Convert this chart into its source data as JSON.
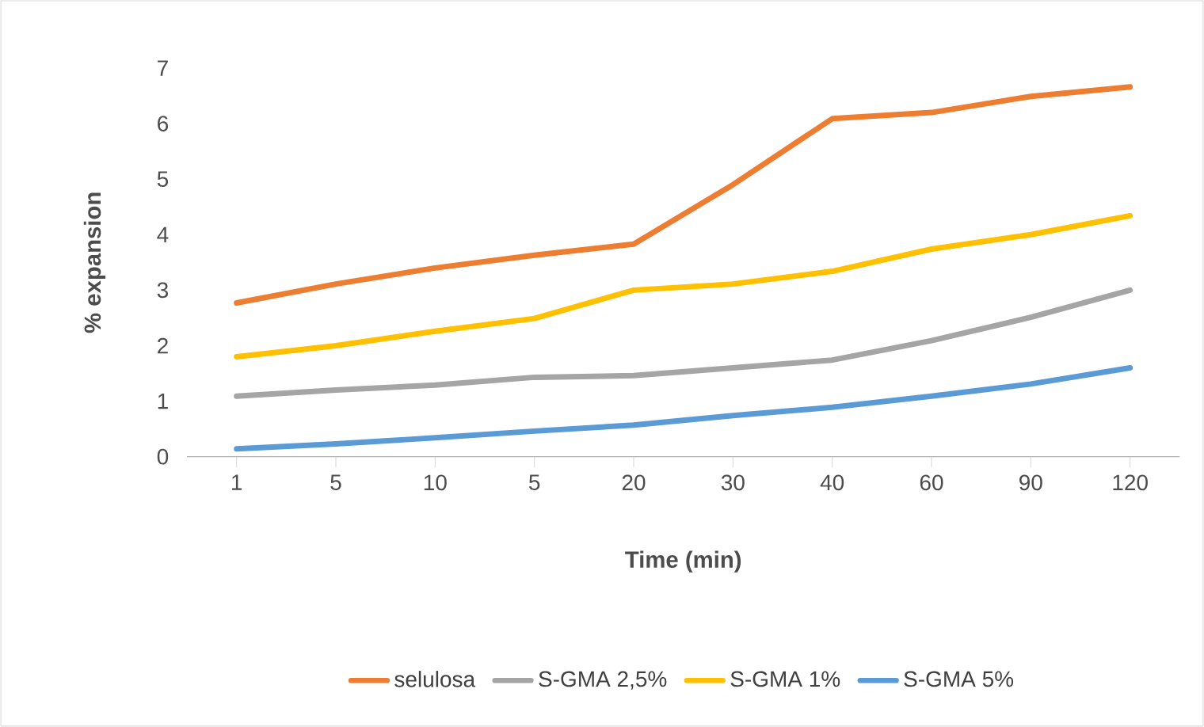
{
  "chart_data": {
    "type": "line",
    "xlabel": "Time (min)",
    "ylabel": "% expansion",
    "categories": [
      "1",
      "5",
      "10",
      "5",
      "20",
      "30",
      "40",
      "60",
      "90",
      "120"
    ],
    "series": [
      {
        "name": "selulosa",
        "color": "#ed7d31",
        "values": [
          2.77,
          3.11,
          3.4,
          3.63,
          3.83,
          4.9,
          6.09,
          6.2,
          6.49,
          6.66
        ]
      },
      {
        "name": "S-GMA 2,5%",
        "color": "#a5a5a5",
        "values": [
          1.09,
          1.2,
          1.29,
          1.43,
          1.46,
          1.6,
          1.74,
          2.09,
          2.51,
          3.0
        ]
      },
      {
        "name": "S-GMA 1%",
        "color": "#ffc000",
        "values": [
          1.8,
          2.0,
          2.26,
          2.49,
          3.0,
          3.11,
          3.34,
          3.74,
          4.0,
          4.34
        ]
      },
      {
        "name": "S-GMA 5%",
        "color": "#5b9bd5",
        "values": [
          0.14,
          0.23,
          0.34,
          0.46,
          0.57,
          0.74,
          0.89,
          1.09,
          1.31,
          1.6
        ]
      }
    ],
    "ylim": [
      0,
      7
    ],
    "yticks": [
      0,
      1,
      2,
      3,
      4,
      5,
      6,
      7
    ],
    "grid": false,
    "legend": "bottom",
    "marker": "none",
    "line_style": "solid"
  }
}
